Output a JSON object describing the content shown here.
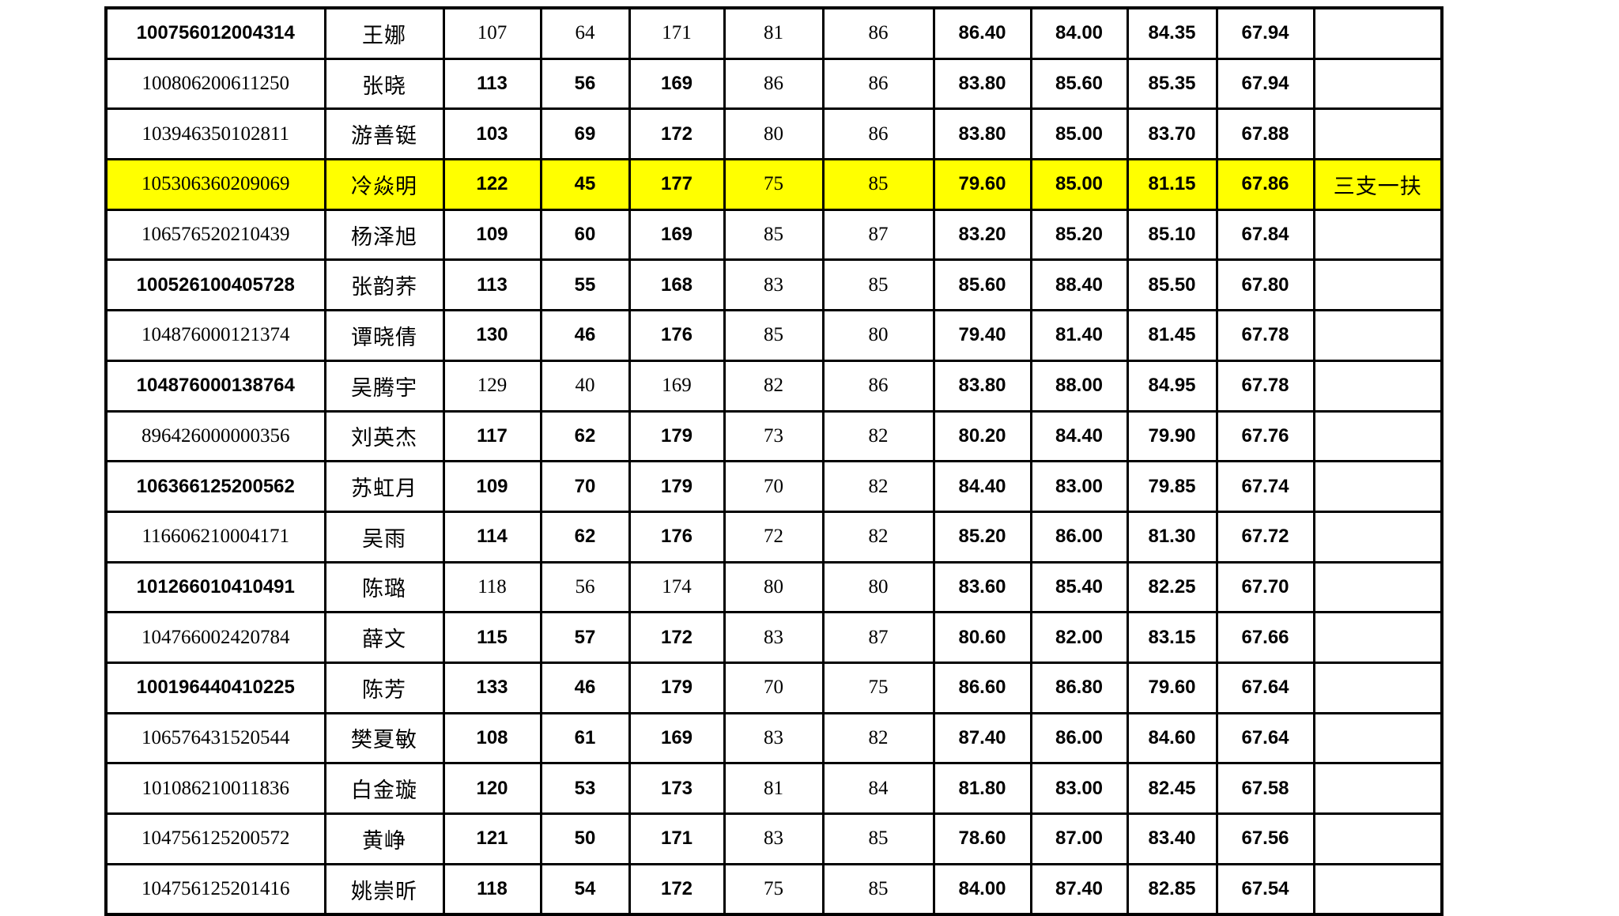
{
  "page": {
    "background_color": "#ffffff",
    "grid_color": "#000000",
    "highlight_color": "#ffff00"
  },
  "table": {
    "visible_header": false,
    "column_keys": [
      "id",
      "name",
      "s1",
      "s2",
      "s3",
      "s4",
      "s5",
      "a1",
      "a2",
      "a3",
      "final",
      "remark"
    ],
    "rows": [
      {
        "id": "100756012004314",
        "name": "王娜",
        "s1": "107",
        "s2": "64",
        "s3": "171",
        "s4": "81",
        "s5": "86",
        "a1": "86.40",
        "a2": "84.00",
        "a3": "84.35",
        "final": "67.94",
        "remark": "",
        "highlight": false,
        "id_serif": false,
        "score_serif": true
      },
      {
        "id": "100806200611250",
        "name": "张晓",
        "s1": "113",
        "s2": "56",
        "s3": "169",
        "s4": "86",
        "s5": "86",
        "a1": "83.80",
        "a2": "85.60",
        "a3": "85.35",
        "final": "67.94",
        "remark": "",
        "highlight": false,
        "id_serif": true,
        "score_serif": false
      },
      {
        "id": "103946350102811",
        "name": "游善铤",
        "s1": "103",
        "s2": "69",
        "s3": "172",
        "s4": "80",
        "s5": "86",
        "a1": "83.80",
        "a2": "85.00",
        "a3": "83.70",
        "final": "67.88",
        "remark": "",
        "highlight": false,
        "id_serif": true,
        "score_serif": false
      },
      {
        "id": "105306360209069",
        "name": "冷焱明",
        "s1": "122",
        "s2": "45",
        "s3": "177",
        "s4": "75",
        "s5": "85",
        "a1": "79.60",
        "a2": "85.00",
        "a3": "81.15",
        "final": "67.86",
        "remark": "三支一扶",
        "highlight": true,
        "id_serif": true,
        "score_serif": false
      },
      {
        "id": "106576520210439",
        "name": "杨泽旭",
        "s1": "109",
        "s2": "60",
        "s3": "169",
        "s4": "85",
        "s5": "87",
        "a1": "83.20",
        "a2": "85.20",
        "a3": "85.10",
        "final": "67.84",
        "remark": "",
        "highlight": false,
        "id_serif": true,
        "score_serif": false
      },
      {
        "id": "100526100405728",
        "name": "张韵荞",
        "s1": "113",
        "s2": "55",
        "s3": "168",
        "s4": "83",
        "s5": "85",
        "a1": "85.60",
        "a2": "88.40",
        "a3": "85.50",
        "final": "67.80",
        "remark": "",
        "highlight": false,
        "id_serif": false,
        "score_serif": false
      },
      {
        "id": "104876000121374",
        "name": "谭晓倩",
        "s1": "130",
        "s2": "46",
        "s3": "176",
        "s4": "85",
        "s5": "80",
        "a1": "79.40",
        "a2": "81.40",
        "a3": "81.45",
        "final": "67.78",
        "remark": "",
        "highlight": false,
        "id_serif": true,
        "score_serif": false
      },
      {
        "id": "104876000138764",
        "name": "吴腾宇",
        "s1": "129",
        "s2": "40",
        "s3": "169",
        "s4": "82",
        "s5": "86",
        "a1": "83.80",
        "a2": "88.00",
        "a3": "84.95",
        "final": "67.78",
        "remark": "",
        "highlight": false,
        "id_serif": false,
        "score_serif": true
      },
      {
        "id": "896426000000356",
        "name": "刘英杰",
        "s1": "117",
        "s2": "62",
        "s3": "179",
        "s4": "73",
        "s5": "82",
        "a1": "80.20",
        "a2": "84.40",
        "a3": "79.90",
        "final": "67.76",
        "remark": "",
        "highlight": false,
        "id_serif": true,
        "score_serif": false
      },
      {
        "id": "106366125200562",
        "name": "苏虹月",
        "s1": "109",
        "s2": "70",
        "s3": "179",
        "s4": "70",
        "s5": "82",
        "a1": "84.40",
        "a2": "83.00",
        "a3": "79.85",
        "final": "67.74",
        "remark": "",
        "highlight": false,
        "id_serif": false,
        "score_serif": false
      },
      {
        "id": "116606210004171",
        "name": "吴雨",
        "s1": "114",
        "s2": "62",
        "s3": "176",
        "s4": "72",
        "s5": "82",
        "a1": "85.20",
        "a2": "86.00",
        "a3": "81.30",
        "final": "67.72",
        "remark": "",
        "highlight": false,
        "id_serif": true,
        "score_serif": false
      },
      {
        "id": "101266010410491",
        "name": "陈璐",
        "s1": "118",
        "s2": "56",
        "s3": "174",
        "s4": "80",
        "s5": "80",
        "a1": "83.60",
        "a2": "85.40",
        "a3": "82.25",
        "final": "67.70",
        "remark": "",
        "highlight": false,
        "id_serif": false,
        "score_serif": true
      },
      {
        "id": "104766002420784",
        "name": "薛文",
        "s1": "115",
        "s2": "57",
        "s3": "172",
        "s4": "83",
        "s5": "87",
        "a1": "80.60",
        "a2": "82.00",
        "a3": "83.15",
        "final": "67.66",
        "remark": "",
        "highlight": false,
        "id_serif": true,
        "score_serif": false
      },
      {
        "id": "100196440410225",
        "name": "陈芳",
        "s1": "133",
        "s2": "46",
        "s3": "179",
        "s4": "70",
        "s5": "75",
        "a1": "86.60",
        "a2": "86.80",
        "a3": "79.60",
        "final": "67.64",
        "remark": "",
        "highlight": false,
        "id_serif": false,
        "score_serif": false
      },
      {
        "id": "106576431520544",
        "name": "樊夏敏",
        "s1": "108",
        "s2": "61",
        "s3": "169",
        "s4": "83",
        "s5": "82",
        "a1": "87.40",
        "a2": "86.00",
        "a3": "84.60",
        "final": "67.64",
        "remark": "",
        "highlight": false,
        "id_serif": true,
        "score_serif": false
      },
      {
        "id": "101086210011836",
        "name": "白金璇",
        "s1": "120",
        "s2": "53",
        "s3": "173",
        "s4": "81",
        "s5": "84",
        "a1": "81.80",
        "a2": "83.00",
        "a3": "82.45",
        "final": "67.58",
        "remark": "",
        "highlight": false,
        "id_serif": true,
        "score_serif": false
      },
      {
        "id": "104756125200572",
        "name": "黄峥",
        "s1": "121",
        "s2": "50",
        "s3": "171",
        "s4": "83",
        "s5": "85",
        "a1": "78.60",
        "a2": "87.00",
        "a3": "83.40",
        "final": "67.56",
        "remark": "",
        "highlight": false,
        "id_serif": true,
        "score_serif": false
      },
      {
        "id": "104756125201416",
        "name": "姚崇昕",
        "s1": "118",
        "s2": "54",
        "s3": "172",
        "s4": "75",
        "s5": "85",
        "a1": "84.00",
        "a2": "87.40",
        "a3": "82.85",
        "final": "67.54",
        "remark": "",
        "highlight": false,
        "id_serif": true,
        "score_serif": false
      }
    ]
  }
}
